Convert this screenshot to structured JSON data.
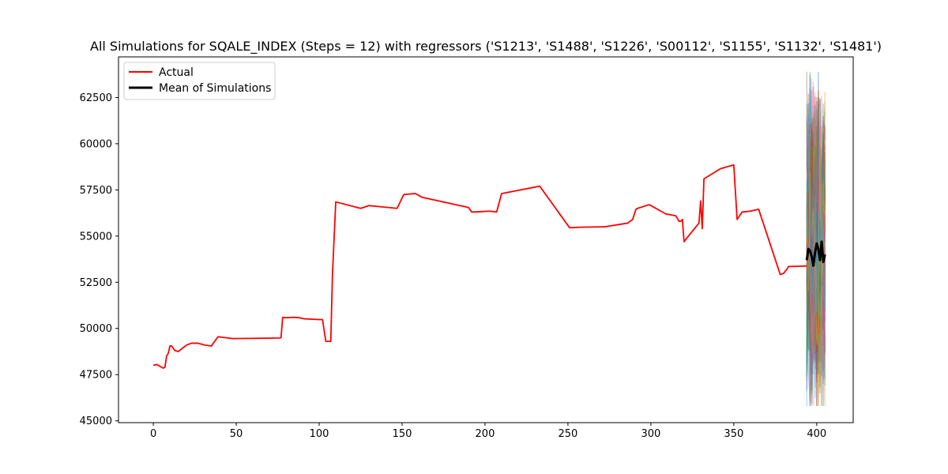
{
  "chart_data": {
    "type": "line",
    "title": "All Simulations for SQALE_INDEX (Steps = 12) with regressors ('S1213', 'S1488', 'S1226', 'S00112', 'S1155', 'S1132', 'S1481')",
    "xlabel": "",
    "ylabel": "",
    "xlim": [
      -21,
      422
    ],
    "ylim": [
      44900,
      64700
    ],
    "xticks": [
      0,
      50,
      100,
      150,
      200,
      250,
      300,
      350,
      400
    ],
    "yticks": [
      45000,
      47500,
      50000,
      52500,
      55000,
      57500,
      60000,
      62500
    ],
    "ytick_labels": [
      "45000",
      "47500",
      "50000",
      "52500",
      "55000",
      "57500",
      "60000",
      "62500"
    ],
    "grid": false,
    "legend_position": "upper left",
    "legend": [
      {
        "label": "Actual",
        "color": "#ff0000"
      },
      {
        "label": "Mean of Simulations",
        "color": "#000000"
      }
    ],
    "series": [
      {
        "name": "Actual",
        "color": "#ff0000",
        "x": [
          0,
          2,
          5,
          6,
          7,
          8,
          9,
          10,
          11,
          13,
          15,
          20,
          23,
          27,
          31,
          35,
          39,
          48,
          76,
          77,
          78,
          80,
          85,
          88,
          91,
          100,
          102,
          104,
          107,
          108,
          110,
          125,
          130,
          147,
          151,
          155,
          158,
          162,
          190,
          192,
          197,
          203,
          207,
          210,
          233,
          251,
          257,
          272,
          286,
          289,
          291,
          292,
          299,
          309,
          315,
          317,
          318,
          319,
          320,
          329,
          330,
          331,
          332,
          342,
          350,
          352,
          355,
          360,
          365,
          378,
          380,
          382,
          383,
          394
        ],
        "y": [
          48000,
          48050,
          47900,
          47850,
          47900,
          48500,
          48650,
          49050,
          49050,
          48800,
          48750,
          49100,
          49200,
          49200,
          49100,
          49050,
          49550,
          49450,
          49480,
          49500,
          50600,
          50580,
          50600,
          50580,
          50520,
          50480,
          50480,
          49300,
          49300,
          52900,
          56850,
          56500,
          56650,
          56500,
          57250,
          57280,
          57300,
          57100,
          56550,
          56300,
          56320,
          56350,
          56300,
          57300,
          57700,
          55450,
          55480,
          55500,
          55700,
          55900,
          56450,
          56500,
          56700,
          56200,
          56100,
          55800,
          55800,
          55900,
          54700,
          55700,
          56900,
          55400,
          58100,
          58650,
          58850,
          55900,
          56300,
          56350,
          56450,
          52920,
          52980,
          53200,
          53350,
          53380
        ]
      },
      {
        "name": "Mean of Simulations",
        "color": "#000000",
        "x": [
          394,
          395,
          396,
          397,
          398,
          399,
          400,
          401,
          402,
          403,
          404,
          405
        ],
        "y": [
          53700,
          54300,
          54200,
          53900,
          53400,
          54100,
          54600,
          54300,
          53700,
          54700,
          53600,
          54000
        ]
      }
    ],
    "simulations_summary": {
      "count": 100,
      "x_range": [
        394,
        405
      ],
      "min": 45800,
      "max": 63900,
      "colors": [
        "#1f77b4",
        "#ff7f0e",
        "#2ca02c",
        "#d62728",
        "#9467bd",
        "#8c564b",
        "#e377c2",
        "#7f7f7f",
        "#bcbd22",
        "#17becf"
      ]
    }
  }
}
